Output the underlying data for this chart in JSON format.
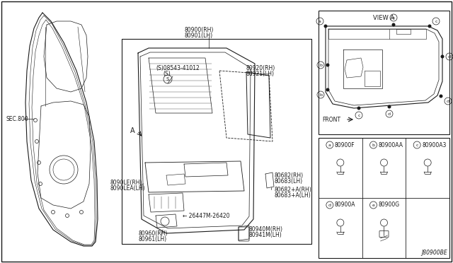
{
  "bg_color": "#ffffff",
  "line_color": "#1a1a1a",
  "border": [
    2,
    2,
    636,
    368
  ],
  "sec_label": "SEC.800",
  "diagram_code": "J80900BE",
  "view_a_label": "VIEW A",
  "front_label": "FRONT",
  "labels": {
    "top_center": [
      "80900(RH)",
      "80901(LH)"
    ],
    "screw": [
      "(S)08543-41012",
      "(S)"
    ],
    "window_trim": [
      "80920(RH)",
      "80921(LH)"
    ],
    "door_trim": [
      "8090LE(RH)",
      "8090LEA(LH)"
    ],
    "clip1": [
      "80682(RH)",
      "80683(LH)"
    ],
    "clip2": [
      "80682+A(RH)",
      "80683+A(LH)"
    ],
    "sw": "26447M-26420",
    "lamp1": [
      "80960(RH)",
      "80961(LH)"
    ],
    "lamp2": [
      "80940M(RH)",
      "80941M(LH)"
    ]
  },
  "table": [
    [
      "a",
      "80900F"
    ],
    [
      "b",
      "80900AA"
    ],
    [
      "c",
      "80900A3"
    ],
    [
      "d",
      "80900A"
    ],
    [
      "e",
      "80900G"
    ]
  ]
}
